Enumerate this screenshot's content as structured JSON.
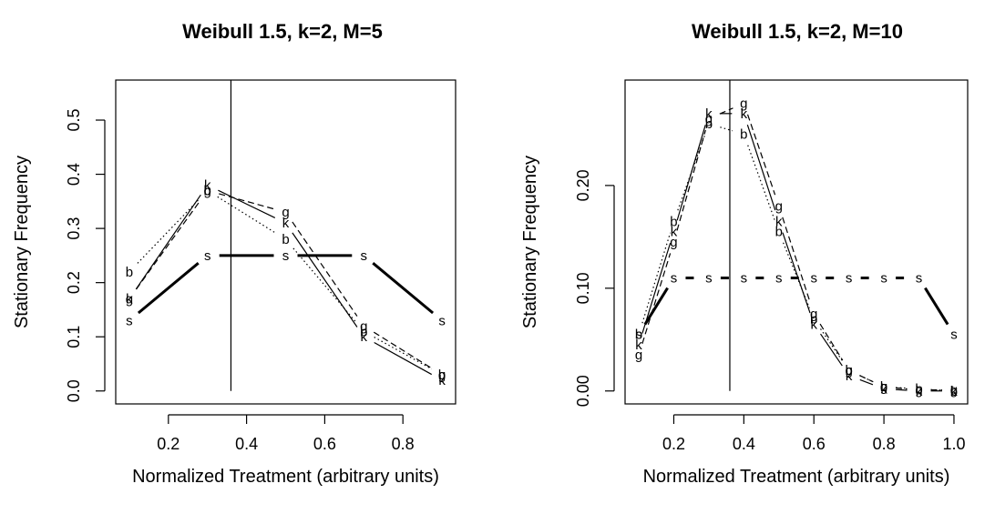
{
  "chart_data": [
    {
      "type": "line",
      "title": "Weibull 1.5, k=2, M=5",
      "xlabel": "Normalized Treatment (arbitrary units)",
      "ylabel": "Stationary Frequency",
      "xlim": [
        0.1,
        0.9
      ],
      "ylim": [
        0.0,
        0.55
      ],
      "xticks": [
        "0.2",
        "0.4",
        "0.6",
        "0.8"
      ],
      "yticks": [
        "0.0",
        "0.1",
        "0.2",
        "0.3",
        "0.4",
        "0.5"
      ],
      "vline": 0.36,
      "x": [
        0.1,
        0.3,
        0.5,
        0.7,
        0.9
      ],
      "series": [
        {
          "name": "k",
          "values": [
            0.17,
            0.38,
            0.31,
            0.1,
            0.02
          ]
        },
        {
          "name": "g",
          "values": [
            0.17,
            0.37,
            0.33,
            0.12,
            0.03
          ]
        },
        {
          "name": "b",
          "values": [
            0.22,
            0.37,
            0.28,
            0.11,
            0.03
          ]
        },
        {
          "name": "s",
          "values": [
            0.13,
            0.25,
            0.25,
            0.25,
            0.13
          ]
        }
      ]
    },
    {
      "type": "line",
      "title": "Weibull 1.5, k=2, M=10",
      "xlabel": "Normalized Treatment (arbitrary units)",
      "ylabel": "Stationary Frequency",
      "xlim": [
        0.1,
        1.0
      ],
      "ylim": [
        0.0,
        0.29
      ],
      "xticks": [
        "0.2",
        "0.4",
        "0.6",
        "0.8",
        "1.0"
      ],
      "yticks": [
        "0.00",
        "0.10",
        "0.20"
      ],
      "vline": 0.36,
      "x": [
        0.1,
        0.2,
        0.3,
        0.4,
        0.5,
        0.6,
        0.7,
        0.8,
        0.9,
        1.0
      ],
      "series": [
        {
          "name": "k",
          "values": [
            0.045,
            0.155,
            0.27,
            0.27,
            0.165,
            0.065,
            0.015,
            0.002,
            0.0,
            0.0
          ]
        },
        {
          "name": "g",
          "values": [
            0.035,
            0.145,
            0.265,
            0.28,
            0.18,
            0.075,
            0.02,
            0.004,
            0.001,
            0.001
          ]
        },
        {
          "name": "b",
          "values": [
            0.055,
            0.165,
            0.26,
            0.25,
            0.155,
            0.07,
            0.02,
            0.004,
            0.002,
            0.0
          ]
        },
        {
          "name": "s",
          "values": [
            0.055,
            0.11,
            0.11,
            0.11,
            0.11,
            0.11,
            0.11,
            0.11,
            0.11,
            0.055
          ]
        }
      ]
    }
  ]
}
